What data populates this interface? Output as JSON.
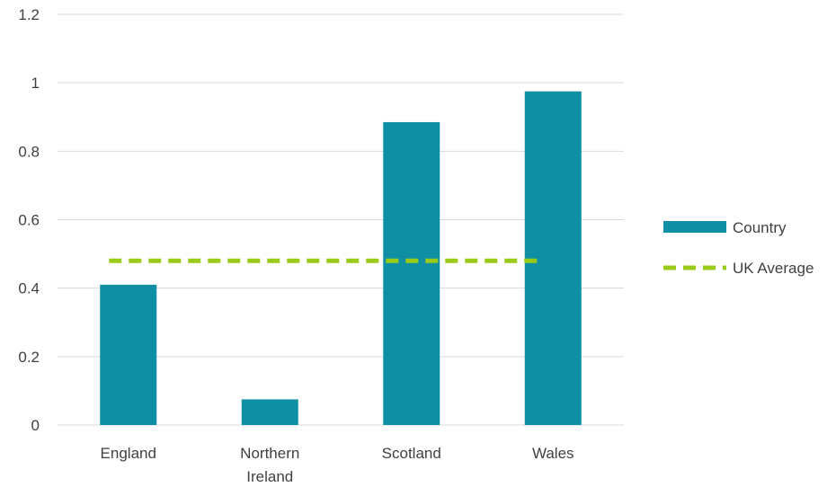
{
  "chart_data": {
    "type": "bar",
    "title": "",
    "xlabel": "",
    "ylabel": "",
    "categories": [
      [
        "England"
      ],
      [
        "Northern",
        "Ireland"
      ],
      [
        "Scotland"
      ],
      [
        "Wales"
      ]
    ],
    "series": [
      {
        "name": "Country",
        "kind": "bar",
        "values": [
          0.41,
          0.075,
          0.885,
          0.975
        ],
        "color": "#0e8fa4"
      },
      {
        "name": "UK Average",
        "kind": "line-dashed",
        "values": [
          0.48,
          0.48,
          0.48,
          0.48
        ],
        "color": "#99cc1a"
      }
    ],
    "ylim": [
      0,
      1.2
    ],
    "yticks": [
      0,
      0.2,
      0.4,
      0.6,
      0.8,
      1,
      1.2
    ],
    "grid": true,
    "legend": "right",
    "colors": {
      "gridline": "#d9d9d9",
      "axis_text": "#404040"
    }
  }
}
